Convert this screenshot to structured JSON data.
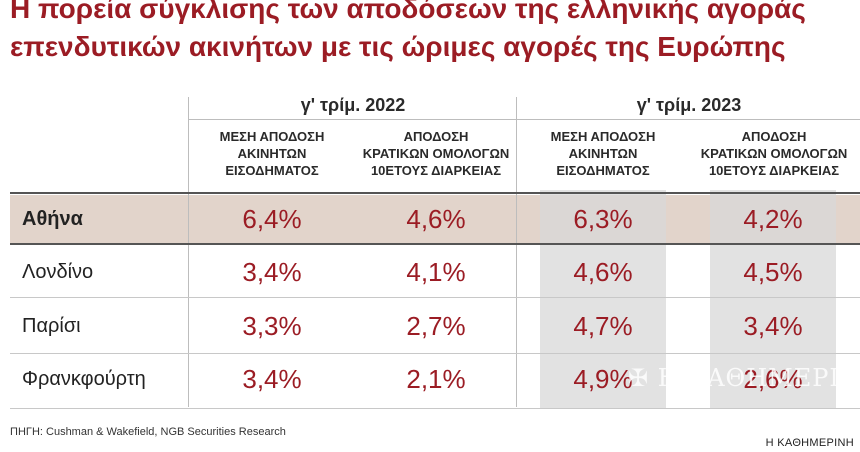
{
  "title_line1": "Η πορεία σύγκλισης των αποδόσεων της ελληνικής αγοράς",
  "title_line2": "επενδυτικών ακινήτων με τις ώριμες αγορές της Ευρώπης",
  "periods": [
    "γ' τρίμ. 2022",
    "γ' τρίμ. 2023"
  ],
  "column_headers": [
    "ΜΕΣΗ ΑΠΟΔΟΣΗ\nΑΚΙΝΗΤΩΝ\nΕΙΣΟΔΗΜΑΤΟΣ",
    "ΑΠΟΔΟΣΗ\nΚΡΑΤΙΚΩΝ ΟΜΟΛΟΓΩΝ\n10ΕΤΟΥΣ ΔΙΑΡΚΕΙΑΣ",
    "ΜΕΣΗ ΑΠΟΔΟΣΗ\nΑΚΙΝΗΤΩΝ\nΕΙΣΟΔΗΜΑΤΟΣ",
    "ΑΠΟΔΟΣΗ\nΚΡΑΤΙΚΩΝ ΟΜΟΛΟΓΩΝ\n10ΕΤΟΥΣ ΔΙΑΡΚΕΙΑΣ"
  ],
  "chart_data": {
    "type": "table",
    "rows": [
      {
        "city": "Αθήνα",
        "values": [
          "6,4%",
          "4,6%",
          "6,3%",
          "4,2%"
        ]
      },
      {
        "city": "Λονδίνο",
        "values": [
          "3,4%",
          "4,1%",
          "4,6%",
          "4,5%"
        ]
      },
      {
        "city": "Παρίσι",
        "values": [
          "3,3%",
          "2,7%",
          "4,7%",
          "3,4%"
        ]
      },
      {
        "city": "Φρανκφούρτη",
        "values": [
          "3,4%",
          "2,1%",
          "4,9%",
          "2,6%"
        ]
      }
    ]
  },
  "source": "ΠΗΓΗ: Cushman & Wakefield, NGB Securities Research",
  "brand": "Η ΚΑΘΗΜΕΡΙΝΗ",
  "watermark": "✠ Η ΚΑΘΗΜΕΡΙΝΗ",
  "colors": {
    "accent": "#9b1c24",
    "highlight": "#e2d4cb",
    "shade": "#d8d8d8"
  }
}
